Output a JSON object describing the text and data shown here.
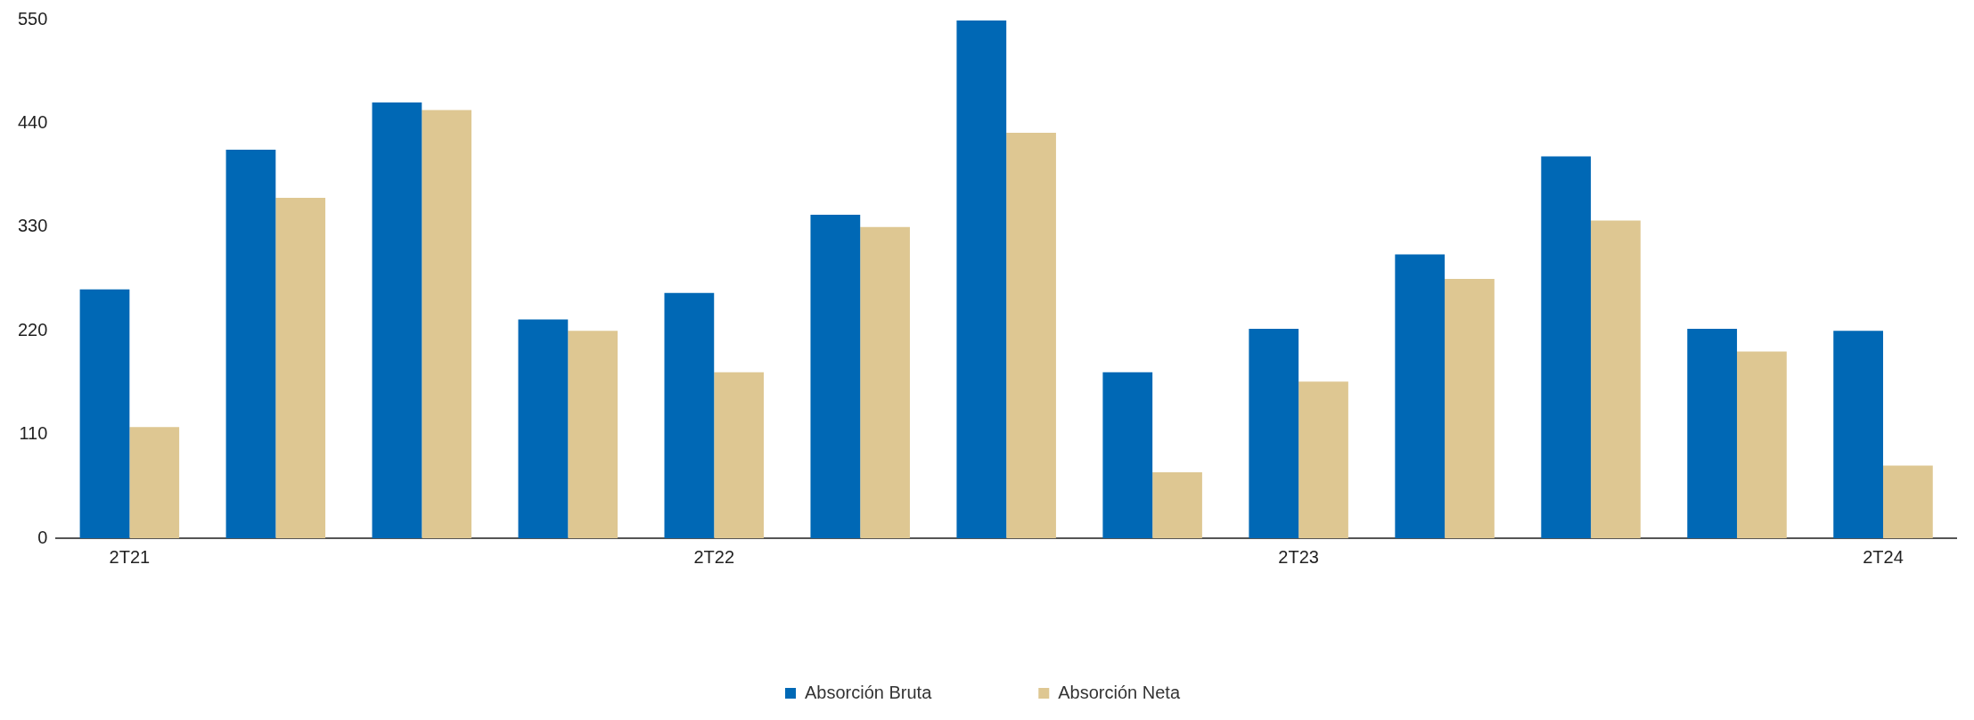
{
  "chart_data": {
    "type": "bar",
    "categories": [
      "2T21",
      null,
      null,
      null,
      "2T22",
      null,
      null,
      null,
      "2T23",
      null,
      null,
      null,
      "2T24"
    ],
    "series": [
      {
        "name": "Absorción Bruta",
        "color": "#0068b5",
        "values": [
          264,
          412,
          462,
          232,
          260,
          343,
          549,
          176,
          222,
          301,
          405,
          222,
          220
        ]
      },
      {
        "name": "Absorción Neta",
        "color": "#dec792",
        "values": [
          118,
          361,
          454,
          220,
          176,
          330,
          430,
          70,
          166,
          275,
          337,
          198,
          77
        ]
      }
    ],
    "ylim": [
      0,
      550
    ],
    "yticks": [
      0,
      110,
      220,
      330,
      440,
      550
    ],
    "grid": false,
    "legend": "bottom"
  }
}
